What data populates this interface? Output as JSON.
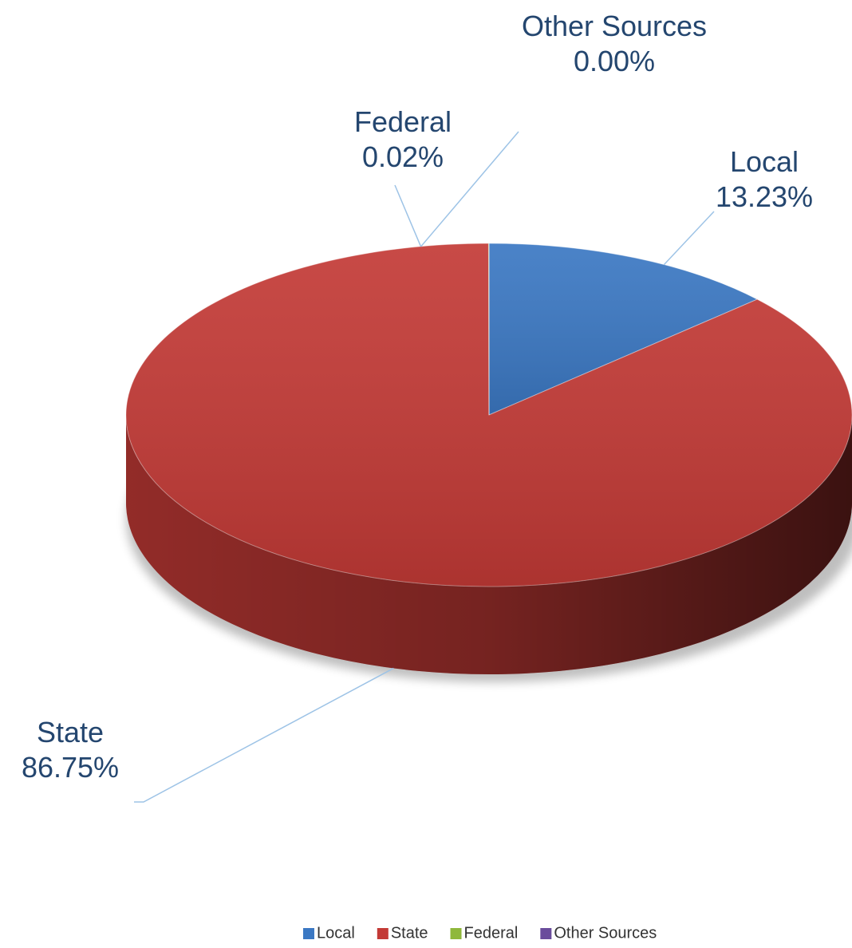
{
  "chart_data": {
    "type": "pie3d",
    "categories": [
      "Local",
      "State",
      "Federal",
      "Other Sources"
    ],
    "values": [
      13.23,
      86.75,
      0.02,
      0.0
    ],
    "value_labels": [
      "13.23%",
      "86.75%",
      "0.02%",
      "0.00%"
    ],
    "colors": [
      "#3b78c3",
      "#c33a36",
      "#8fb83c",
      "#6a4c9c"
    ],
    "legend": "bottom"
  }
}
